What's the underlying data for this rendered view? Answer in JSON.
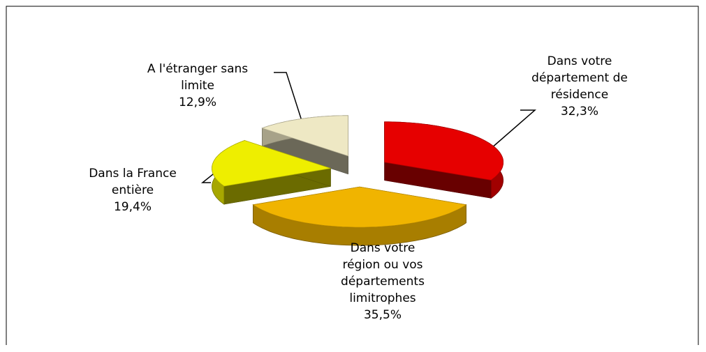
{
  "chart_data": {
    "type": "pie3d",
    "categories": [
      "Dans votre département de résidence",
      "Dans votre région ou vos départements limitrophes",
      "Dans la France entière",
      "A l'étranger sans limite"
    ],
    "values": [
      32.3,
      35.5,
      19.4,
      12.9
    ],
    "value_labels": [
      "32,3%",
      "35,5%",
      "19,4%",
      "12,9%"
    ],
    "colors": [
      "#e60000",
      "#f0b400",
      "#eeee00",
      "#eee8c4"
    ]
  }
}
